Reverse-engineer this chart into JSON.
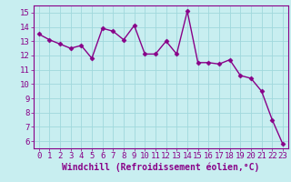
{
  "x": [
    0,
    1,
    2,
    3,
    4,
    5,
    6,
    7,
    8,
    9,
    10,
    11,
    12,
    13,
    14,
    15,
    16,
    17,
    18,
    19,
    20,
    21,
    22,
    23
  ],
  "y": [
    13.5,
    13.1,
    12.8,
    12.5,
    12.7,
    11.8,
    13.9,
    13.7,
    13.1,
    14.1,
    12.1,
    12.1,
    13.0,
    12.1,
    15.1,
    11.5,
    11.5,
    11.4,
    11.7,
    10.6,
    10.4,
    9.5,
    7.5,
    5.8
  ],
  "line_color": "#880088",
  "marker": "D",
  "marker_size": 2.5,
  "linewidth": 1.0,
  "bg_color": "#c8eef0",
  "grid_color": "#a0d8dc",
  "xlabel": "Windchill (Refroidissement éolien,°C)",
  "xlabel_color": "#880088",
  "xlim": [
    -0.5,
    23.5
  ],
  "ylim": [
    5.5,
    15.5
  ],
  "yticks": [
    6,
    7,
    8,
    9,
    10,
    11,
    12,
    13,
    14,
    15
  ],
  "xticks": [
    0,
    1,
    2,
    3,
    4,
    5,
    6,
    7,
    8,
    9,
    10,
    11,
    12,
    13,
    14,
    15,
    16,
    17,
    18,
    19,
    20,
    21,
    22,
    23
  ],
  "tick_color": "#880088",
  "tick_fontsize": 6.5,
  "xlabel_fontsize": 7.0,
  "spine_color": "#880088",
  "border_color": "#660066"
}
